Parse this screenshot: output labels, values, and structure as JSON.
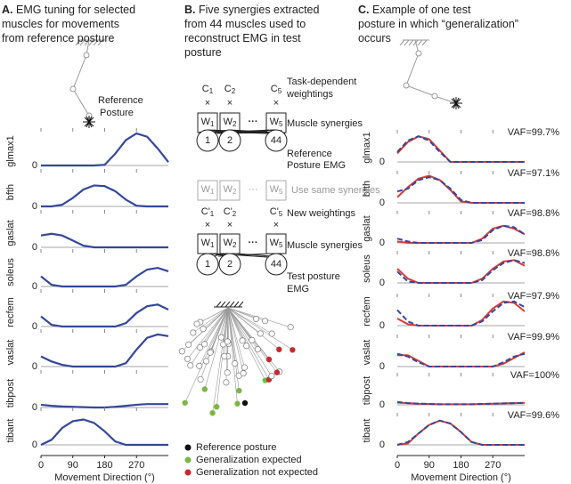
{
  "panel_a": {
    "label": "A.",
    "title": [
      "EMG tuning for selected",
      "muscles for movements",
      "from reference posture"
    ],
    "posture_label": [
      "Reference",
      "Posture"
    ],
    "zero_label": "0",
    "xlim": [
      0,
      360
    ],
    "xticks": [
      0,
      90,
      180,
      270
    ],
    "xlabel": "Movement Direction (°)",
    "x": [
      0,
      30,
      60,
      90,
      120,
      150,
      180,
      210,
      240,
      270,
      300,
      330,
      360
    ],
    "color": "#34479a",
    "muscles": [
      {
        "name": "glmax1",
        "values": [
          0,
          0,
          0,
          0,
          0,
          0,
          0.02,
          0.35,
          0.75,
          0.95,
          0.85,
          0.5,
          0.1
        ]
      },
      {
        "name": "bfth",
        "values": [
          0,
          0,
          0.05,
          0.25,
          0.5,
          0.62,
          0.6,
          0.45,
          0.2,
          0.02,
          0,
          0,
          0
        ]
      },
      {
        "name": "gaslat",
        "values": [
          0.35,
          0.4,
          0.35,
          0.2,
          0.05,
          0,
          0,
          0,
          0,
          0,
          0,
          0,
          0
        ]
      },
      {
        "name": "soleus",
        "values": [
          0.3,
          0.05,
          0,
          0,
          0,
          0,
          0,
          0,
          0.05,
          0.3,
          0.5,
          0.55,
          0.45
        ]
      },
      {
        "name": "recfem",
        "values": [
          0.3,
          0.05,
          0,
          0,
          0,
          0,
          0,
          0,
          0.1,
          0.4,
          0.6,
          0.65,
          0.5
        ]
      },
      {
        "name": "vaslat",
        "values": [
          0.3,
          0.15,
          0.05,
          0,
          0,
          0,
          0,
          0,
          0.1,
          0.5,
          0.85,
          0.95,
          0.9
        ]
      },
      {
        "name": "tibpost",
        "values": [
          0.08,
          0.05,
          0.03,
          0.02,
          0.01,
          0,
          0,
          0.02,
          0.05,
          0.08,
          0.1,
          0.1,
          0.1
        ]
      },
      {
        "name": "tibant",
        "values": [
          0,
          0.15,
          0.5,
          0.7,
          0.75,
          0.65,
          0.4,
          0.1,
          0,
          0,
          0,
          0,
          0
        ]
      }
    ]
  },
  "panel_b": {
    "label": "B.",
    "title": [
      "Five synergies extracted",
      "from 44 muscles used to",
      "reconstruct EMG in test",
      "posture"
    ],
    "weights": [
      {
        "letter": "C",
        "sub": "1"
      },
      {
        "letter": "C",
        "sub": "2"
      },
      {
        "letter": "C",
        "sub": "5"
      }
    ],
    "new_weights": [
      {
        "letter": "C'",
        "sub": "1"
      },
      {
        "letter": "C'",
        "sub": "2"
      },
      {
        "letter": "C'",
        "sub": "5"
      }
    ],
    "times": "×",
    "dots": "···",
    "synergies": [
      {
        "letter": "W",
        "sub": "1"
      },
      {
        "letter": "W",
        "sub": "2"
      },
      {
        "letter": "W",
        "sub": "5"
      }
    ],
    "muscles": [
      "1",
      "2",
      "44"
    ],
    "labels": {
      "task": [
        "Task-dependent",
        "weightings"
      ],
      "synergies": "Muscle synergies",
      "reference_emg": [
        "Reference",
        "Posture EMG"
      ],
      "same": "Use same synergies",
      "new_weightings": "New weightings",
      "test_emg": [
        "Test posture",
        "EMG"
      ]
    },
    "legend": [
      {
        "name": "Reference posture",
        "color": "#111111"
      },
      {
        "name": "Generalization expected",
        "color": "#7ab648"
      },
      {
        "name": "Generalization not expected",
        "color": "#c62a2f"
      }
    ]
  },
  "panel_c": {
    "label": "C.",
    "title": [
      "Example of one test",
      "posture in which “generalization”",
      "occurs"
    ],
    "zero_label": "0",
    "xlim": [
      0,
      360
    ],
    "xticks": [
      0,
      90,
      180,
      270
    ],
    "xlabel": "Movement Direction (°)",
    "x": [
      0,
      30,
      60,
      90,
      120,
      150,
      180,
      210,
      240,
      270,
      300,
      330,
      360
    ],
    "data_color": "#34479a",
    "fit_color": "#d93a36",
    "muscles": [
      {
        "name": "glmax1",
        "vaf": "VAF=99.7%",
        "data": [
          0.35,
          0.75,
          0.9,
          0.75,
          0.35,
          0,
          0,
          0,
          0,
          0,
          0,
          0,
          0
        ],
        "fit": [
          0.3,
          0.7,
          0.9,
          0.8,
          0.4,
          0,
          0,
          0,
          0,
          0,
          0,
          0,
          0
        ]
      },
      {
        "name": "bfth",
        "vaf": "VAF=97.1%",
        "data": [
          0.4,
          0.5,
          0.8,
          0.9,
          0.8,
          0.5,
          0.1,
          0,
          0,
          0,
          0,
          0,
          0
        ],
        "fit": [
          0.2,
          0.55,
          0.85,
          0.95,
          0.8,
          0.45,
          0.05,
          0,
          0,
          0,
          0,
          0,
          0
        ]
      },
      {
        "name": "gaslat",
        "vaf": "VAF=98.8%",
        "data": [
          0.15,
          0.05,
          0,
          0,
          0,
          0,
          0,
          0,
          0.1,
          0.45,
          0.6,
          0.55,
          0.3
        ],
        "fit": [
          0.05,
          0,
          0,
          0,
          0,
          0,
          0,
          0,
          0.15,
          0.5,
          0.6,
          0.5,
          0.3
        ]
      },
      {
        "name": "soleus",
        "vaf": "VAF=98.8%",
        "data": [
          0.4,
          0.05,
          0,
          0,
          0,
          0,
          0,
          0,
          0.1,
          0.45,
          0.7,
          0.8,
          0.7
        ],
        "fit": [
          0.5,
          0.15,
          0,
          0,
          0,
          0,
          0,
          0,
          0.15,
          0.5,
          0.75,
          0.8,
          0.6
        ]
      },
      {
        "name": "recfem",
        "vaf": "VAF=97.9%",
        "data": [
          0.55,
          0.15,
          0,
          0,
          0,
          0,
          0,
          0,
          0.15,
          0.5,
          0.8,
          0.85,
          0.65
        ],
        "fit": [
          0.25,
          0.05,
          0,
          0,
          0,
          0,
          0,
          0,
          0.2,
          0.6,
          0.85,
          0.8,
          0.5
        ]
      },
      {
        "name": "vaslat",
        "vaf": "VAF=99.9%",
        "data": [
          0.45,
          0.35,
          0.15,
          0,
          0,
          0,
          0,
          0,
          0,
          0,
          0.15,
          0.35,
          0.45
        ],
        "fit": [
          0.4,
          0.4,
          0.2,
          0,
          0,
          0,
          0,
          0,
          0,
          0,
          0.1,
          0.3,
          0.5
        ]
      },
      {
        "name": "tibpost",
        "vaf": "VAF=100%",
        "data": [
          0.1,
          0.06,
          0.04,
          0.03,
          0.02,
          0.02,
          0.02,
          0.02,
          0.03,
          0.04,
          0.05,
          0.06,
          0.07
        ],
        "fit": [
          0.08,
          0.06,
          0.04,
          0.03,
          0.02,
          0.02,
          0.02,
          0.02,
          0.03,
          0.04,
          0.05,
          0.06,
          0.07
        ]
      },
      {
        "name": "tibant",
        "vaf": "VAF=99.6%",
        "data": [
          0,
          0.1,
          0.4,
          0.7,
          0.85,
          0.75,
          0.45,
          0.1,
          0,
          0,
          0,
          0,
          0
        ],
        "fit": [
          0,
          0.05,
          0.4,
          0.7,
          0.85,
          0.75,
          0.45,
          0.1,
          0,
          0,
          0,
          0,
          0
        ]
      }
    ]
  }
}
